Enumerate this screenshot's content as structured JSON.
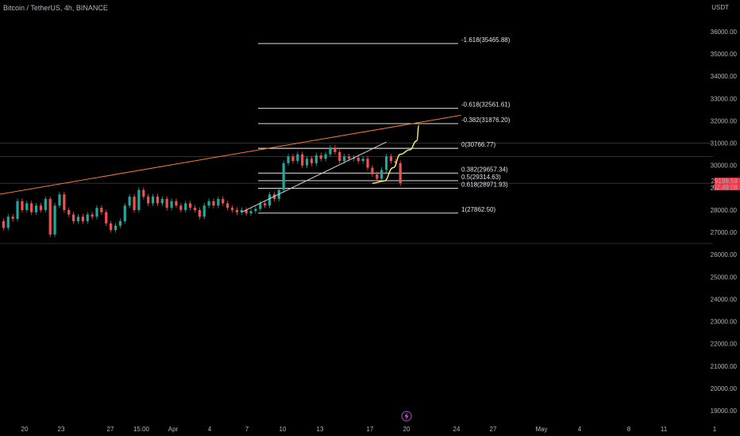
{
  "header": {
    "symbol_line": "Bitcoin / TetherUS, 4h, BINANCE",
    "currency": "USDT"
  },
  "price_badge": {
    "price": "29199.59",
    "countdown": "02:49:08",
    "color": "#f23645"
  },
  "colors": {
    "background": "#000000",
    "up": "#26a69a",
    "down": "#ef5350",
    "trendline": "#f57c2c",
    "support": "#d1d4dc",
    "projection": "#f5f078",
    "fib": "#ffffff",
    "event_icon": "#8e44ad"
  },
  "event_icon": "lightning-icon",
  "chart_data": {
    "type": "candlestick",
    "xlabel": "",
    "ylabel": "",
    "x_ticks": [
      "20",
      "23",
      "27",
      "15:00",
      "Apr",
      "4",
      "7",
      "10",
      "13",
      "17",
      "20",
      "24",
      "27",
      "May",
      "4",
      "8",
      "11",
      "1"
    ],
    "y_ticks": [
      19000,
      20000,
      21000,
      22000,
      23000,
      24000,
      25000,
      26000,
      27000,
      28000,
      29000,
      30000,
      31000,
      32000,
      33000,
      34000,
      35000,
      36000
    ],
    "ylim": [
      18800,
      37200
    ],
    "fib_levels": [
      {
        "label": "-1.618(35465.88)",
        "value": 35465.88
      },
      {
        "label": "-0.618(32561.61)",
        "value": 32561.61
      },
      {
        "label": "-0.382(31876.20)",
        "value": 31876.2
      },
      {
        "label": "0(30766.77)",
        "value": 30766.77
      },
      {
        "label": "0.382(29657.34)",
        "value": 29657.34
      },
      {
        "label": "0.5(29314.63)",
        "value": 29314.63
      },
      {
        "label": "0.618(28971.93)",
        "value": 28971.93
      },
      {
        "label": "1(27862.50)",
        "value": 27862.5
      }
    ],
    "horizontal_lines": [
      31000,
      30400,
      29200,
      26500
    ],
    "trendlines": [
      {
        "name": "",
        "points": [
          [
            -8,
            28450
          ],
          [
            98,
            32250
          ]
        ]
      },
      {
        "name": "",
        "points": [
          [
            51,
            27900
          ],
          [
            82,
            31050
          ]
        ]
      }
    ],
    "projection": [
      [
        79,
        29200
      ],
      [
        81.5,
        29300
      ],
      [
        83.5,
        29900
      ],
      [
        85,
        30500
      ],
      [
        87,
        30700
      ],
      [
        88.5,
        31100
      ],
      [
        89,
        31800
      ]
    ],
    "candles": [
      {
        "o": 27500,
        "c": 27200
      },
      {
        "o": 27200,
        "c": 27700
      },
      {
        "o": 27700,
        "c": 27600
      },
      {
        "o": 27600,
        "c": 28400
      },
      {
        "o": 28400,
        "c": 28000
      },
      {
        "o": 28000,
        "c": 28300
      },
      {
        "o": 28300,
        "c": 27900
      },
      {
        "o": 27900,
        "c": 28200
      },
      {
        "o": 28200,
        "c": 28000
      },
      {
        "o": 28000,
        "c": 28500
      },
      {
        "o": 28500,
        "c": 26900
      },
      {
        "o": 26900,
        "c": 28200
      },
      {
        "o": 28200,
        "c": 28700
      },
      {
        "o": 28700,
        "c": 28000
      },
      {
        "o": 28000,
        "c": 27800
      },
      {
        "o": 27800,
        "c": 27500
      },
      {
        "o": 27500,
        "c": 27700
      },
      {
        "o": 27700,
        "c": 27500
      },
      {
        "o": 27500,
        "c": 27800
      },
      {
        "o": 27800,
        "c": 27700
      },
      {
        "o": 27700,
        "c": 28100
      },
      {
        "o": 28100,
        "c": 27900
      },
      {
        "o": 27900,
        "c": 27400
      },
      {
        "o": 27400,
        "c": 27100
      },
      {
        "o": 27100,
        "c": 27300
      },
      {
        "o": 27300,
        "c": 27500
      },
      {
        "o": 27500,
        "c": 28200
      },
      {
        "o": 28200,
        "c": 28600
      },
      {
        "o": 28600,
        "c": 28000
      },
      {
        "o": 28000,
        "c": 28900
      },
      {
        "o": 28900,
        "c": 28600
      },
      {
        "o": 28600,
        "c": 28300
      },
      {
        "o": 28300,
        "c": 28600
      },
      {
        "o": 28600,
        "c": 28300
      },
      {
        "o": 28300,
        "c": 28500
      },
      {
        "o": 28500,
        "c": 28100
      },
      {
        "o": 28100,
        "c": 28400
      },
      {
        "o": 28400,
        "c": 28200
      },
      {
        "o": 28200,
        "c": 28000
      },
      {
        "o": 28000,
        "c": 28300
      },
      {
        "o": 28300,
        "c": 28100
      },
      {
        "o": 28100,
        "c": 28000
      },
      {
        "o": 28000,
        "c": 27700
      },
      {
        "o": 27700,
        "c": 28200
      },
      {
        "o": 28200,
        "c": 28400
      },
      {
        "o": 28400,
        "c": 28200
      },
      {
        "o": 28200,
        "c": 28500
      },
      {
        "o": 28500,
        "c": 28300
      },
      {
        "o": 28300,
        "c": 28100
      },
      {
        "o": 28100,
        "c": 28000
      },
      {
        "o": 28000,
        "c": 27900
      },
      {
        "o": 27900,
        "c": 28000
      },
      {
        "o": 28000,
        "c": 27850
      },
      {
        "o": 27850,
        "c": 27950
      },
      {
        "o": 27950,
        "c": 28050
      },
      {
        "o": 28050,
        "c": 28300
      },
      {
        "o": 28300,
        "c": 28200
      },
      {
        "o": 28200,
        "c": 28700
      },
      {
        "o": 28700,
        "c": 28500
      },
      {
        "o": 28500,
        "c": 28900
      },
      {
        "o": 28900,
        "c": 30100
      },
      {
        "o": 30100,
        "c": 30400
      },
      {
        "o": 30400,
        "c": 30200
      },
      {
        "o": 30200,
        "c": 30500
      },
      {
        "o": 30500,
        "c": 30000
      },
      {
        "o": 30000,
        "c": 30300
      },
      {
        "o": 30300,
        "c": 30100
      },
      {
        "o": 30100,
        "c": 30450
      },
      {
        "o": 30450,
        "c": 30300
      },
      {
        "o": 30300,
        "c": 30500
      },
      {
        "o": 30500,
        "c": 30800
      },
      {
        "o": 30800,
        "c": 30600
      },
      {
        "o": 30600,
        "c": 30200
      },
      {
        "o": 30200,
        "c": 30400
      },
      {
        "o": 30400,
        "c": 30300
      },
      {
        "o": 30300,
        "c": 30350
      },
      {
        "o": 30350,
        "c": 30200
      },
      {
        "o": 30200,
        "c": 30300
      },
      {
        "o": 30300,
        "c": 29900
      },
      {
        "o": 29900,
        "c": 29600
      },
      {
        "o": 29600,
        "c": 29400
      },
      {
        "o": 29400,
        "c": 29800
      },
      {
        "o": 29800,
        "c": 30400
      },
      {
        "o": 30400,
        "c": 30200
      },
      {
        "o": 30200,
        "c": 30100
      },
      {
        "o": 30100,
        "c": 29200
      }
    ]
  }
}
